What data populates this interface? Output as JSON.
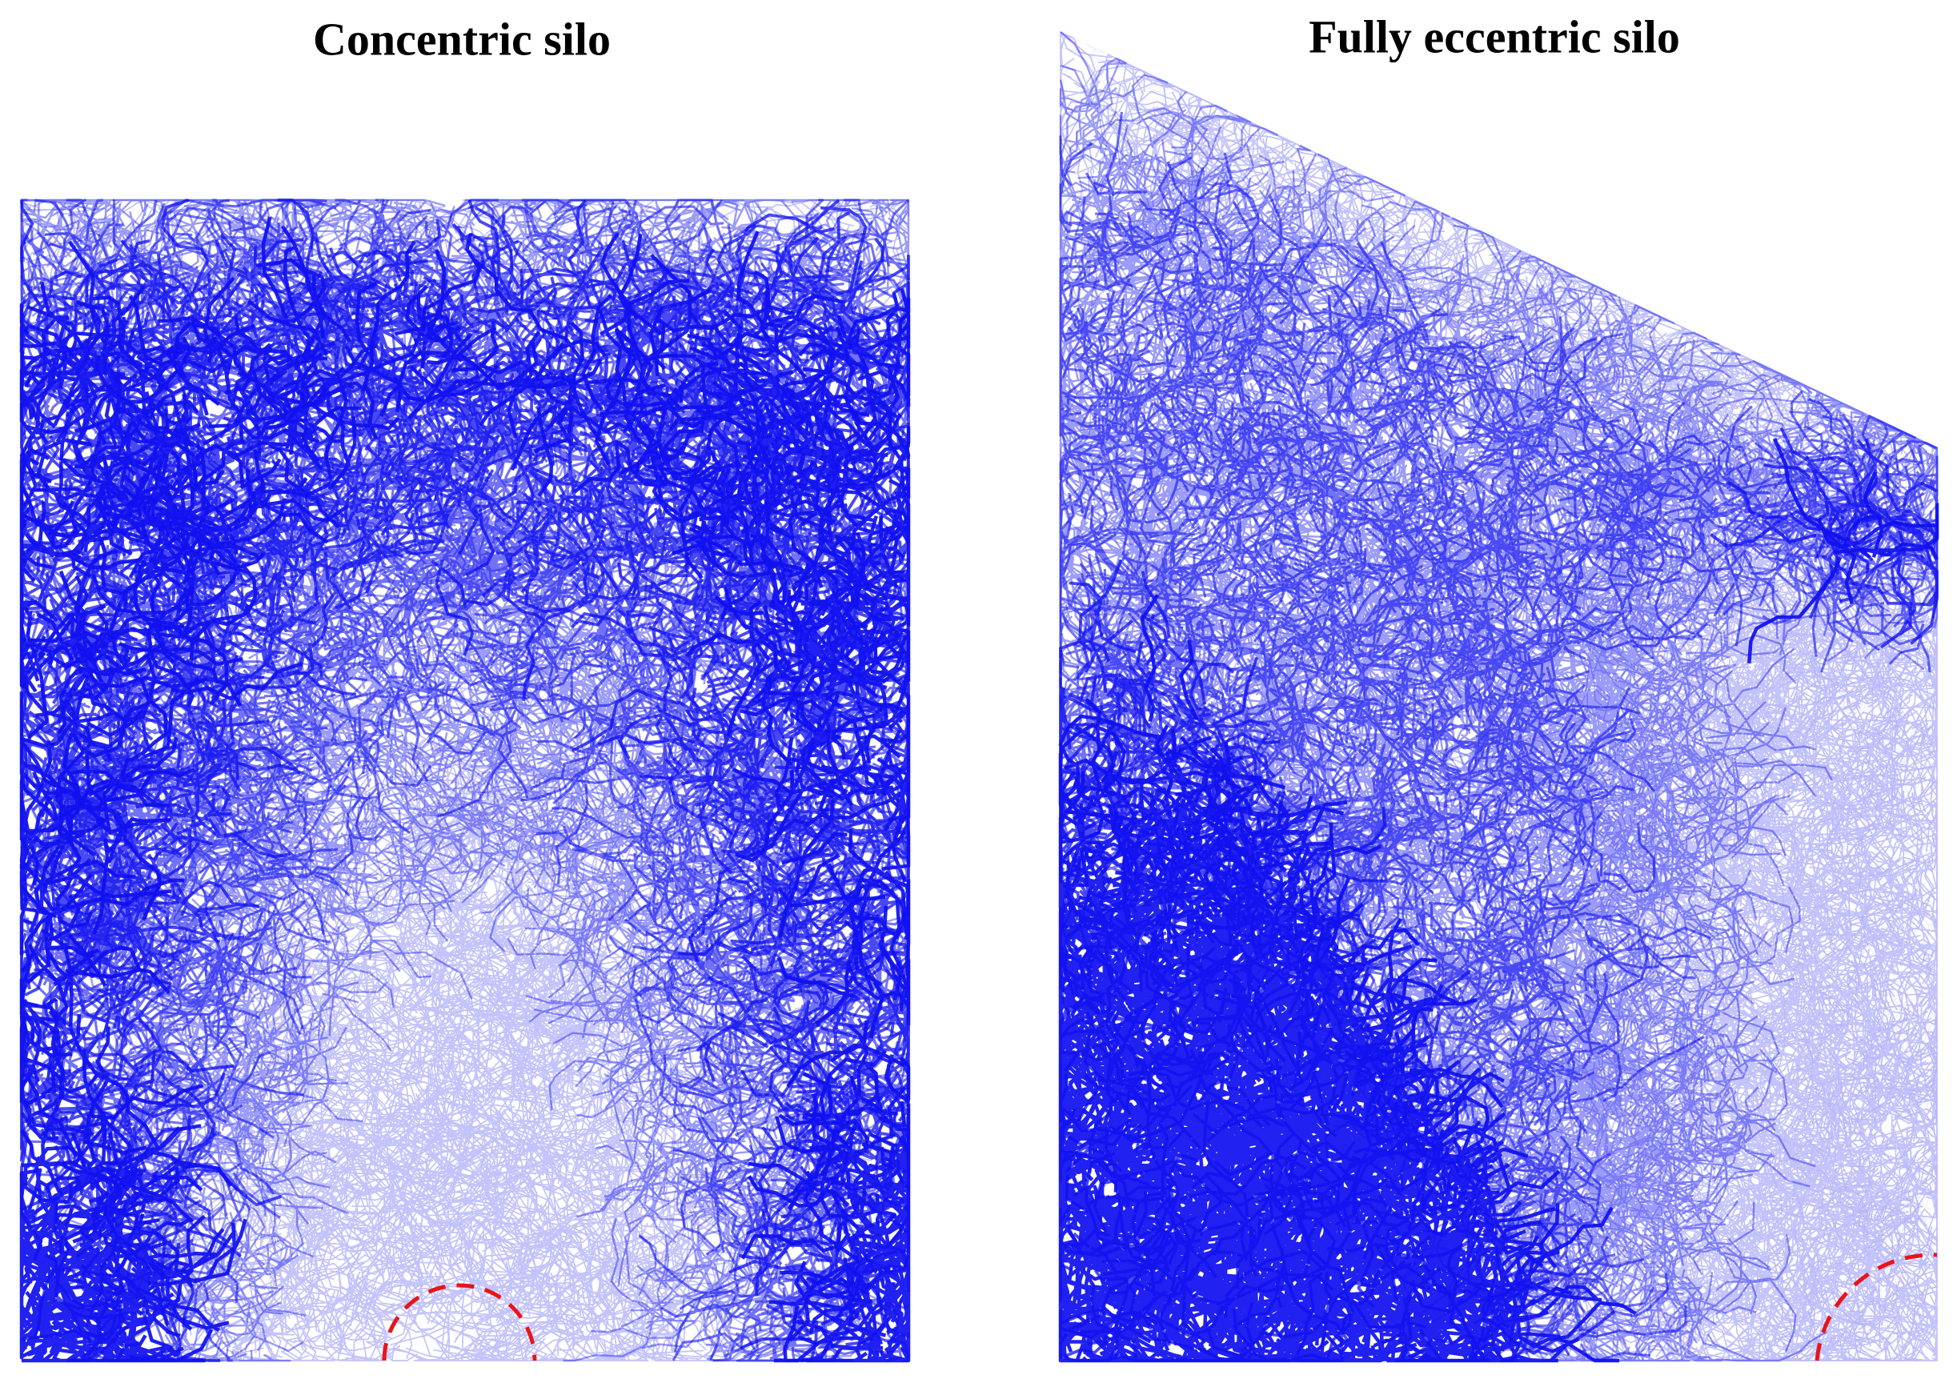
{
  "panels": [
    {
      "title": "Concentric silo"
    },
    {
      "title": "Fully eccentric silo"
    }
  ]
}
